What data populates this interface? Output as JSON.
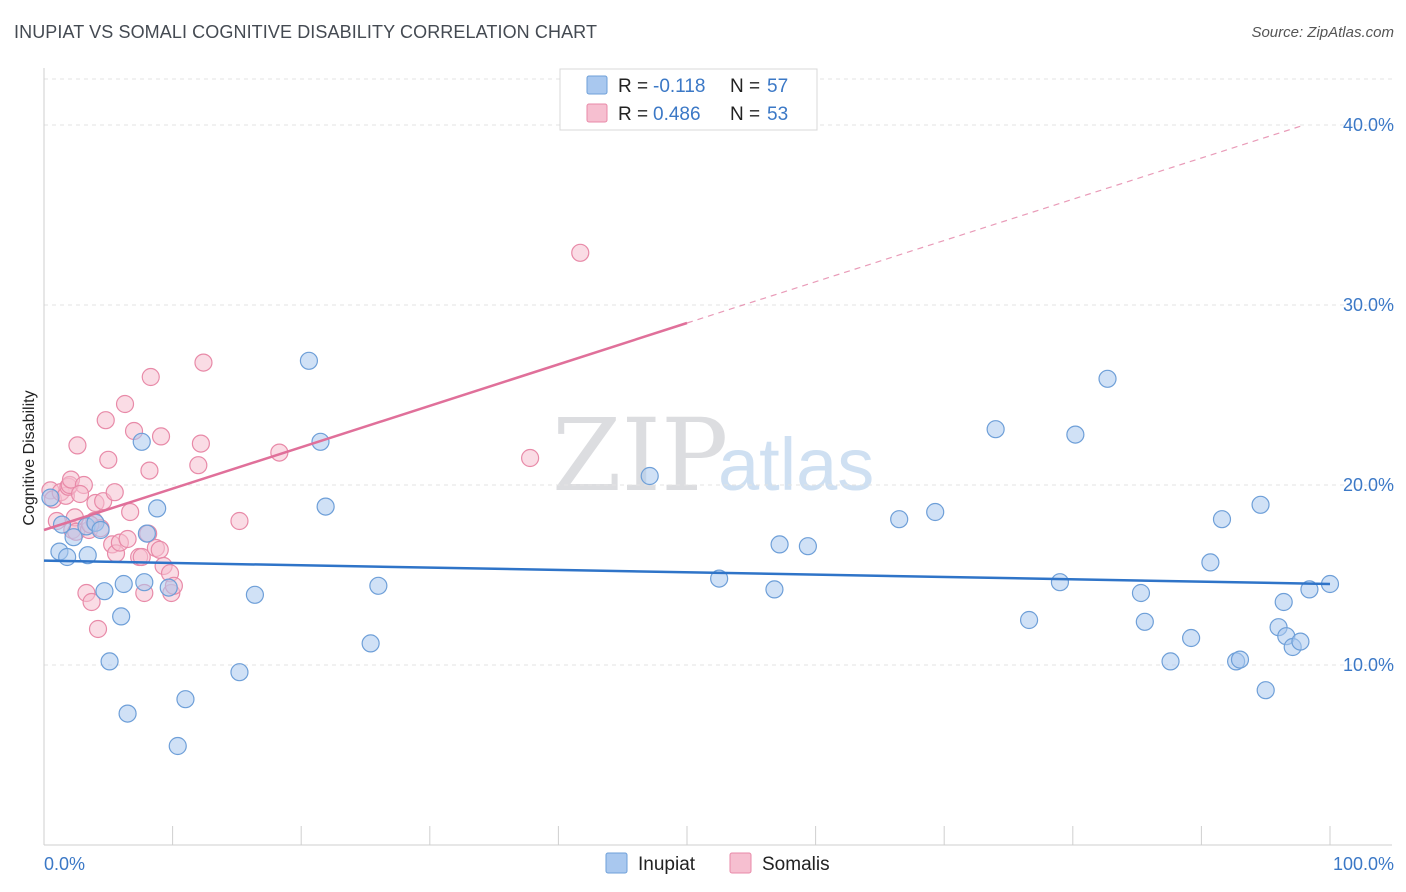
{
  "chart_data": {
    "type": "scatter",
    "title": "INUPIAT VS SOMALI COGNITIVE DISABILITY CORRELATION CHART",
    "source": "Source: ZipAtlas.com",
    "xlabel": "",
    "ylabel": "Cognitive Disability",
    "xlim": [
      0,
      100
    ],
    "ylim": [
      0,
      43
    ],
    "x_tick_labels": [
      "0.0%",
      "100.0%"
    ],
    "y_ticks": [
      10,
      20,
      30,
      40
    ],
    "y_tick_labels": [
      "10.0%",
      "20.0%",
      "30.0%",
      "40.0%"
    ],
    "grid": true,
    "legend": {
      "position": "top-center",
      "entries": [
        {
          "name": "Inupiat",
          "r_label": "R =",
          "r_value": "-0.118",
          "n_label": "N =",
          "n_value": "57"
        },
        {
          "name": "Somalis",
          "r_label": "R =",
          "r_value": "0.486",
          "n_label": "N =",
          "n_value": "53"
        }
      ]
    },
    "bottom_legend": [
      "Inupiat",
      "Somalis"
    ],
    "watermark": {
      "zip": "ZIP",
      "atlas": "atlas"
    },
    "colors": {
      "inupiat_fill": "#a9c8ef",
      "inupiat_stroke": "#6e9fd8",
      "inupiat_line": "#2f74c8",
      "somalis_fill": "#f6bfd0",
      "somalis_stroke": "#e88aa8",
      "somalis_line": "#e0709a",
      "grid": "#e3e3e3",
      "tick_text": "#3b78c6"
    },
    "series": [
      {
        "name": "Inupiat",
        "trend": {
          "x0": 0,
          "y0": 15.8,
          "x1": 100,
          "y1": 14.5
        },
        "points": [
          [
            0.5,
            19.3
          ],
          [
            1.2,
            16.3
          ],
          [
            1.4,
            17.8
          ],
          [
            1.8,
            16.0
          ],
          [
            2.3,
            17.1
          ],
          [
            3.3,
            17.7
          ],
          [
            3.4,
            16.1
          ],
          [
            4.0,
            17.9
          ],
          [
            4.4,
            17.5
          ],
          [
            4.7,
            14.1
          ],
          [
            5.1,
            10.2
          ],
          [
            6.0,
            12.7
          ],
          [
            6.2,
            14.5
          ],
          [
            6.5,
            7.3
          ],
          [
            7.6,
            22.4
          ],
          [
            7.8,
            14.6
          ],
          [
            8.0,
            17.3
          ],
          [
            8.8,
            18.7
          ],
          [
            9.7,
            14.3
          ],
          [
            10.4,
            5.5
          ],
          [
            11.0,
            8.1
          ],
          [
            15.2,
            9.6
          ],
          [
            16.4,
            13.9
          ],
          [
            20.6,
            26.9
          ],
          [
            21.5,
            22.4
          ],
          [
            21.9,
            18.8
          ],
          [
            25.4,
            11.2
          ],
          [
            26.0,
            14.4
          ],
          [
            47.1,
            20.5
          ],
          [
            52.5,
            14.8
          ],
          [
            56.8,
            14.2
          ],
          [
            57.2,
            16.7
          ],
          [
            59.4,
            16.6
          ],
          [
            66.5,
            18.1
          ],
          [
            69.3,
            18.5
          ],
          [
            74.0,
            23.1
          ],
          [
            76.6,
            12.5
          ],
          [
            79.0,
            14.6
          ],
          [
            80.2,
            22.8
          ],
          [
            82.7,
            25.9
          ],
          [
            85.3,
            14.0
          ],
          [
            85.6,
            12.4
          ],
          [
            87.6,
            10.2
          ],
          [
            89.2,
            11.5
          ],
          [
            90.7,
            15.7
          ],
          [
            91.6,
            18.1
          ],
          [
            92.7,
            10.2
          ],
          [
            93.0,
            10.3
          ],
          [
            94.6,
            18.9
          ],
          [
            95.0,
            8.6
          ],
          [
            96.0,
            12.1
          ],
          [
            96.4,
            13.5
          ],
          [
            96.6,
            11.6
          ],
          [
            97.1,
            11.0
          ],
          [
            97.7,
            11.3
          ],
          [
            98.4,
            14.2
          ],
          [
            100.0,
            14.5
          ]
        ]
      },
      {
        "name": "Somalis",
        "trend": {
          "x0": 0,
          "y0": 17.5,
          "x1": 50,
          "y1": 29.0,
          "dash_x1": 98,
          "dash_y1": 40.0
        },
        "points": [
          [
            0.5,
            19.7
          ],
          [
            0.7,
            19.2
          ],
          [
            1.0,
            18.0
          ],
          [
            1.3,
            19.6
          ],
          [
            1.7,
            19.4
          ],
          [
            1.9,
            19.9
          ],
          [
            2.0,
            20.0
          ],
          [
            2.1,
            20.3
          ],
          [
            2.2,
            17.5
          ],
          [
            2.4,
            18.2
          ],
          [
            2.5,
            17.4
          ],
          [
            2.6,
            22.2
          ],
          [
            3.1,
            20.0
          ],
          [
            3.3,
            14.0
          ],
          [
            3.5,
            17.5
          ],
          [
            3.7,
            13.5
          ],
          [
            3.9,
            18.0
          ],
          [
            4.0,
            19.0
          ],
          [
            4.2,
            12.0
          ],
          [
            4.4,
            17.6
          ],
          [
            4.6,
            19.1
          ],
          [
            4.8,
            23.6
          ],
          [
            5.0,
            21.4
          ],
          [
            5.3,
            16.7
          ],
          [
            5.5,
            19.6
          ],
          [
            5.6,
            16.2
          ],
          [
            5.9,
            16.8
          ],
          [
            6.3,
            24.5
          ],
          [
            6.7,
            18.5
          ],
          [
            7.0,
            23.0
          ],
          [
            7.4,
            16.0
          ],
          [
            7.6,
            16.0
          ],
          [
            7.8,
            14.0
          ],
          [
            8.1,
            17.3
          ],
          [
            8.2,
            20.8
          ],
          [
            8.3,
            26.0
          ],
          [
            8.7,
            16.5
          ],
          [
            9.0,
            16.4
          ],
          [
            9.1,
            22.7
          ],
          [
            9.3,
            15.5
          ],
          [
            9.8,
            15.1
          ],
          [
            9.9,
            14.0
          ],
          [
            10.1,
            14.4
          ],
          [
            12.0,
            21.1
          ],
          [
            12.2,
            22.3
          ],
          [
            12.4,
            26.8
          ],
          [
            15.2,
            18.0
          ],
          [
            18.3,
            21.8
          ],
          [
            37.8,
            21.5
          ],
          [
            41.7,
            32.9
          ],
          [
            2.8,
            19.5
          ],
          [
            3.6,
            17.8
          ],
          [
            6.5,
            17.0
          ]
        ]
      }
    ]
  }
}
